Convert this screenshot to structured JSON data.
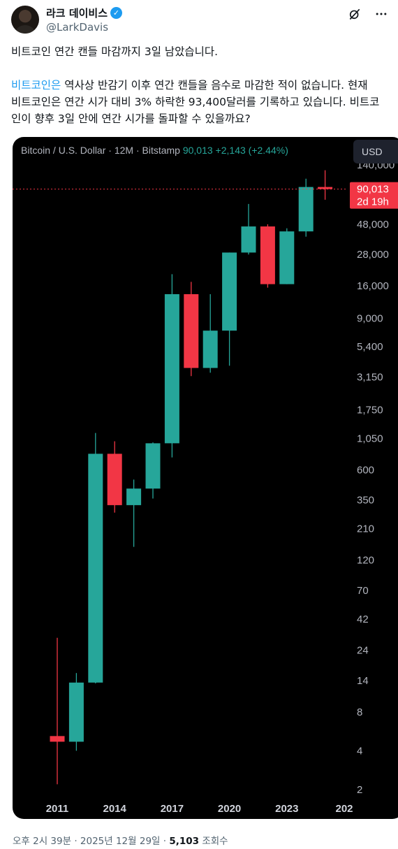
{
  "author": {
    "display_name": "라크 데이비스",
    "handle": "@LarkDavis",
    "verified_mark": "✓"
  },
  "header_icons": [
    "grok-icon",
    "more-options-icon"
  ],
  "tweet": {
    "line1": "비트코인 연간 캔들 마감까지 3일 남았습니다.",
    "hashtag": "비트코인은",
    "line2_rest": " 역사상 반감기 이후 연간 캔들을 음수로 마감한 적이 없습니다. 현재",
    "line3": "비트코인은 연간 시가 대비 3% 하락한 93,400달러를 기록하고 있습니다. 비트코",
    "line4": "인이 향후 3일 안에 연간 시가를 돌파할 수 있을까요?"
  },
  "chart": {
    "symbol_label": "Bitcoin / U.S. Dollar · 12M · Bitstamp",
    "price_info": "90,013  +2,143 (+2.44%)",
    "currency_button": "USD",
    "last_price_label": "90,013",
    "countdown_label": "2d 19h",
    "partial_top_label": "140,000"
  },
  "chart_data": {
    "type": "candlestick",
    "title": "Bitcoin / U.S. Dollar · 12M · Bitstamp",
    "y_scale": "log",
    "y_ticks": [
      2,
      4,
      8,
      14,
      24,
      42,
      70,
      120,
      210,
      350,
      600,
      1050,
      1750,
      3150,
      5400,
      9000,
      16000,
      28000,
      48000
    ],
    "x_tick_labels": [
      "2011",
      "2014",
      "2017",
      "2020",
      "2023",
      "202"
    ],
    "last_price": 90013,
    "colors": {
      "up": "#26a69a",
      "down": "#f23645",
      "grid": "#1b1b1b",
      "price_line": "#f23645"
    },
    "candles": [
      {
        "year": 2011,
        "open": 5.2,
        "high": 30,
        "low": 2.2,
        "close": 4.7
      },
      {
        "year": 2012,
        "open": 4.7,
        "high": 16,
        "low": 4.0,
        "close": 13.5
      },
      {
        "year": 2013,
        "open": 13.5,
        "high": 1160,
        "low": 13.3,
        "close": 800
      },
      {
        "year": 2014,
        "open": 800,
        "high": 1000,
        "low": 280,
        "close": 320
      },
      {
        "year": 2015,
        "open": 320,
        "high": 505,
        "low": 152,
        "close": 430
      },
      {
        "year": 2016,
        "open": 430,
        "high": 980,
        "low": 360,
        "close": 965
      },
      {
        "year": 2017,
        "open": 965,
        "high": 19700,
        "low": 750,
        "close": 13800
      },
      {
        "year": 2018,
        "open": 13800,
        "high": 17200,
        "low": 3200,
        "close": 3700
      },
      {
        "year": 2019,
        "open": 3700,
        "high": 13800,
        "low": 3400,
        "close": 7200
      },
      {
        "year": 2020,
        "open": 7200,
        "high": 29000,
        "low": 3850,
        "close": 29000
      },
      {
        "year": 2021,
        "open": 29000,
        "high": 69000,
        "low": 28000,
        "close": 46200
      },
      {
        "year": 2022,
        "open": 46200,
        "high": 48000,
        "low": 15500,
        "close": 16500
      },
      {
        "year": 2023,
        "open": 16500,
        "high": 44700,
        "low": 16500,
        "close": 42300
      },
      {
        "year": 2024,
        "open": 42300,
        "high": 108300,
        "low": 38500,
        "close": 93400
      },
      {
        "year": 2025,
        "open": 93400,
        "high": 126000,
        "low": 74400,
        "close": 90013
      }
    ]
  },
  "footer": {
    "timestamp": "오후 2시 39분 · 2025년 12월 29일 · ",
    "views_count": "5,103",
    "views_label": " 조회수"
  }
}
